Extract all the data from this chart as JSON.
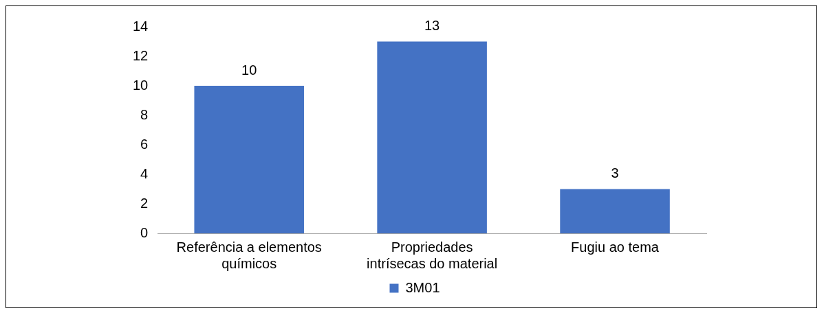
{
  "chart_data": {
    "type": "bar",
    "categories": [
      "Referência a elementos químicos",
      "Propriedades intrísecas do material",
      "Fugiu ao tema"
    ],
    "series": [
      {
        "name": "3M01",
        "color": "#4472c4",
        "values": [
          10,
          13,
          3
        ]
      }
    ],
    "ylim": [
      0,
      14
    ],
    "yticks": [
      0,
      2,
      4,
      6,
      8,
      10,
      12,
      14
    ],
    "grid": false,
    "legend": "bottom",
    "data_labels": true
  }
}
